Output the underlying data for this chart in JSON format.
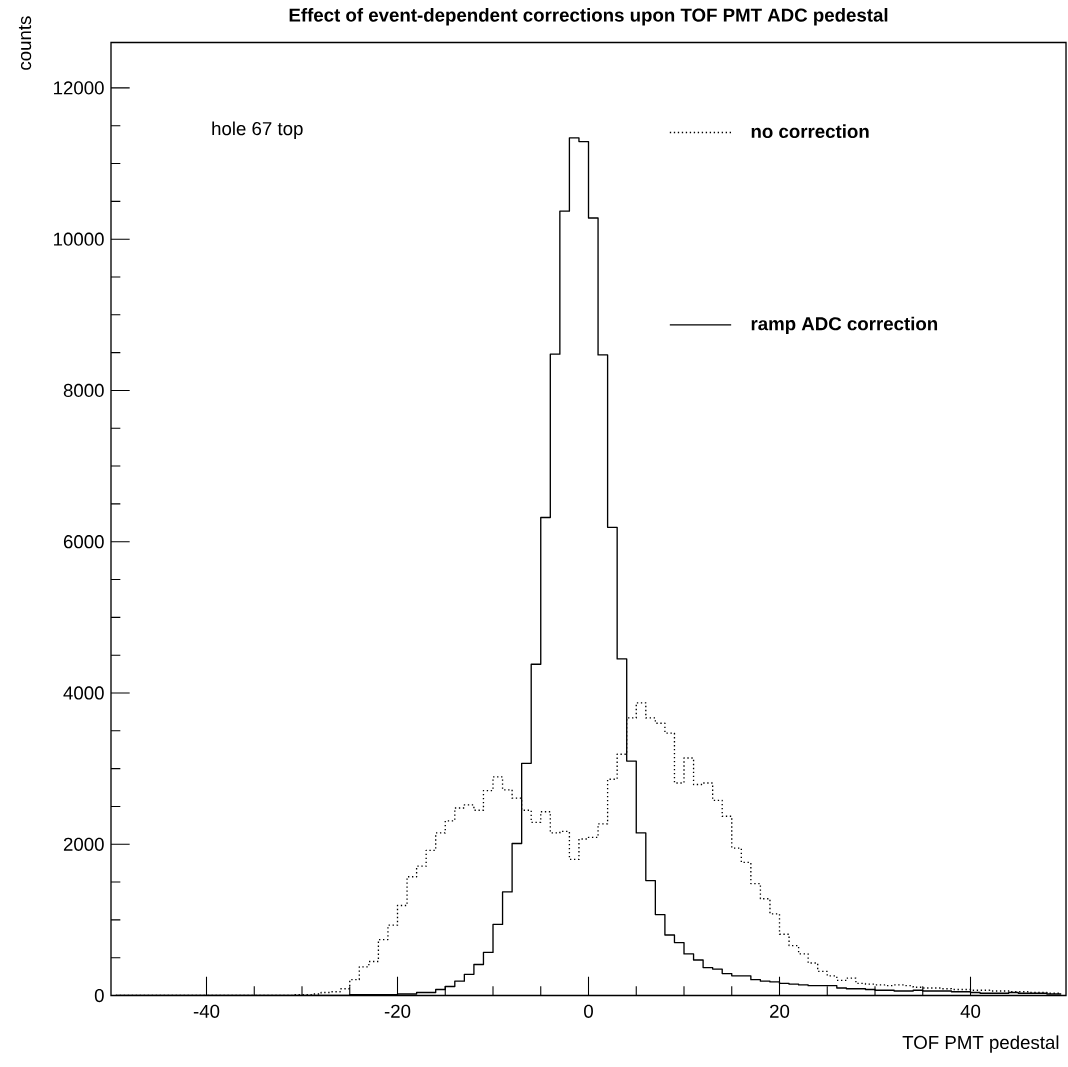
{
  "chart_data": {
    "type": "step",
    "title": "Effect of event-dependent corrections upon TOF PMT ADC pedestal",
    "xlabel": "TOF PMT pedestal",
    "ylabel": "counts",
    "annotations": [
      "hole 67 top"
    ],
    "x": [
      -49.5,
      -48.5,
      -47.5,
      -46.5,
      -45.5,
      -44.5,
      -43.5,
      -42.5,
      -41.5,
      -40.5,
      -39.5,
      -38.5,
      -37.5,
      -36.5,
      -35.5,
      -34.5,
      -33.5,
      -32.5,
      -31.5,
      -30.5,
      -29.5,
      -28.5,
      -27.5,
      -26.5,
      -25.5,
      -24.5,
      -23.5,
      -22.5,
      -21.5,
      -20.5,
      -19.5,
      -18.5,
      -17.5,
      -16.5,
      -15.5,
      -14.5,
      -13.5,
      -12.5,
      -11.5,
      -10.5,
      -9.5,
      -8.5,
      -7.5,
      -6.5,
      -5.5,
      -4.5,
      -3.5,
      -2.5,
      -1.5,
      -0.5,
      0.5,
      1.5,
      2.5,
      3.5,
      4.5,
      5.5,
      6.5,
      7.5,
      8.5,
      9.5,
      10.5,
      11.5,
      12.5,
      13.5,
      14.5,
      15.5,
      16.5,
      17.5,
      18.5,
      19.5,
      20.5,
      21.5,
      22.5,
      23.5,
      24.5,
      25.5,
      26.5,
      27.5,
      28.5,
      29.5,
      30.5,
      31.5,
      32.5,
      33.5,
      34.5,
      35.5,
      36.5,
      37.5,
      38.5,
      39.5,
      40.5,
      41.5,
      42.5,
      43.5,
      44.5,
      45.5,
      46.5,
      47.5,
      48.5,
      49.5
    ],
    "series": [
      {
        "name": "no correction",
        "color": "#000000",
        "line_style": "dotted",
        "values": [
          0,
          0,
          0,
          0,
          0,
          0,
          0,
          0,
          0,
          0,
          0,
          0,
          0,
          0,
          0,
          0,
          0,
          0,
          0,
          10,
          10,
          20,
          40,
          50,
          90,
          210,
          380,
          450,
          740,
          930,
          1190,
          1570,
          1710,
          1920,
          2150,
          2310,
          2480,
          2520,
          2450,
          2710,
          2890,
          2720,
          2610,
          2450,
          2290,
          2430,
          2150,
          2170,
          1800,
          2070,
          2090,
          2270,
          2860,
          3190,
          3670,
          3870,
          3670,
          3600,
          3470,
          2810,
          3140,
          2790,
          2810,
          2580,
          2370,
          1950,
          1760,
          1480,
          1280,
          1080,
          810,
          660,
          550,
          430,
          320,
          260,
          200,
          230,
          160,
          150,
          140,
          130,
          140,
          130,
          110,
          100,
          100,
          90,
          80,
          80,
          70,
          70,
          60,
          60,
          50,
          50,
          40,
          40,
          30,
          30
        ]
      },
      {
        "name": "ramp ADC correction",
        "color": "#000000",
        "line_style": "solid",
        "values": [
          0,
          0,
          0,
          0,
          0,
          0,
          0,
          0,
          0,
          0,
          0,
          0,
          0,
          0,
          0,
          0,
          0,
          0,
          0,
          0,
          0,
          0,
          0,
          0,
          0,
          10,
          10,
          10,
          10,
          10,
          20,
          20,
          40,
          40,
          80,
          120,
          190,
          280,
          410,
          570,
          940,
          1370,
          2010,
          3070,
          4380,
          6320,
          8480,
          10370,
          11340,
          11290,
          10280,
          8470,
          6190,
          4450,
          3100,
          2150,
          1520,
          1070,
          800,
          700,
          550,
          470,
          370,
          350,
          290,
          260,
          260,
          210,
          190,
          180,
          160,
          150,
          140,
          130,
          130,
          130,
          100,
          90,
          90,
          80,
          70,
          70,
          60,
          60,
          70,
          60,
          60,
          60,
          50,
          50,
          40,
          30,
          30,
          30,
          40,
          30,
          30,
          30,
          20,
          20
        ]
      }
    ],
    "xlim": [
      -50,
      50
    ],
    "ylim": [
      0,
      12600
    ],
    "xticks": [
      -40,
      -20,
      0,
      20,
      40
    ],
    "yticks": [
      0,
      2000,
      4000,
      6000,
      8000,
      10000,
      12000
    ],
    "legend": "top right",
    "grid": false
  }
}
